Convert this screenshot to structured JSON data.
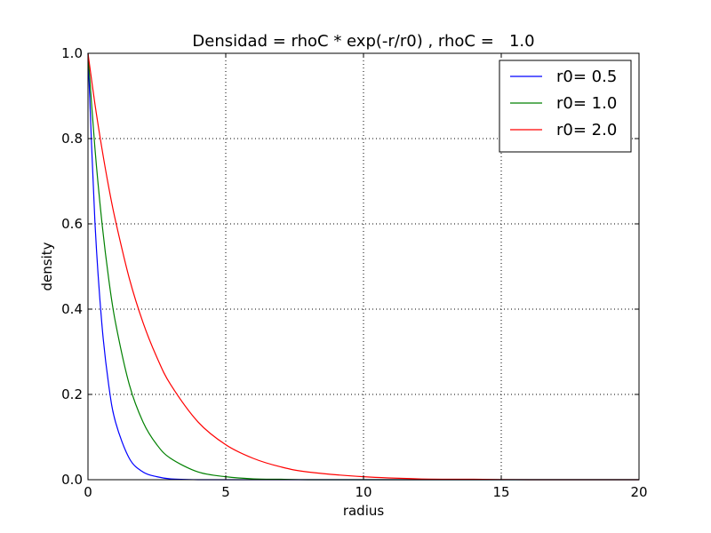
{
  "chart_data": {
    "type": "line",
    "title": "Densidad = rhoC * exp(-r/r0) , rhoC =   1.0",
    "xlabel": "radius",
    "ylabel": "density",
    "xlim": [
      0,
      20
    ],
    "ylim": [
      0,
      1.0
    ],
    "grid": true,
    "grid_style": "dotted",
    "legend_position": "upper-right",
    "x_ticks": [
      0,
      5,
      10,
      15,
      20
    ],
    "x_tick_labels": [
      "0",
      "5",
      "10",
      "15",
      "20"
    ],
    "y_ticks": [
      0,
      0.2,
      0.4,
      0.6,
      0.8,
      1.0
    ],
    "y_tick_labels": [
      "0.0",
      "0.2",
      "0.4",
      "0.6",
      "0.8",
      "1.0"
    ],
    "x": [
      0,
      0.25,
      0.5,
      0.75,
      1,
      1.5,
      2,
      2.5,
      3,
      4,
      5,
      6,
      7,
      8,
      10,
      12,
      14,
      16,
      18,
      20
    ],
    "series": [
      {
        "name": "r0= 0.5",
        "color": "#0000ff",
        "values": [
          1.0,
          0.607,
          0.368,
          0.223,
          0.135,
          0.05,
          0.018,
          0.007,
          0.002,
          0.0,
          0.0,
          0.0,
          0.0,
          0.0,
          0.0,
          0.0,
          0.0,
          0.0,
          0.0,
          0.0
        ]
      },
      {
        "name": "r0= 1.0",
        "color": "#008000",
        "values": [
          1.0,
          0.779,
          0.607,
          0.472,
          0.368,
          0.223,
          0.135,
          0.082,
          0.05,
          0.018,
          0.007,
          0.002,
          0.001,
          0.0,
          0.0,
          0.0,
          0.0,
          0.0,
          0.0,
          0.0
        ]
      },
      {
        "name": "r0= 2.0",
        "color": "#ff0000",
        "values": [
          1.0,
          0.882,
          0.779,
          0.687,
          0.607,
          0.472,
          0.368,
          0.287,
          0.223,
          0.135,
          0.082,
          0.05,
          0.03,
          0.018,
          0.007,
          0.002,
          0.001,
          0.0,
          0.0,
          0.0
        ]
      }
    ]
  }
}
